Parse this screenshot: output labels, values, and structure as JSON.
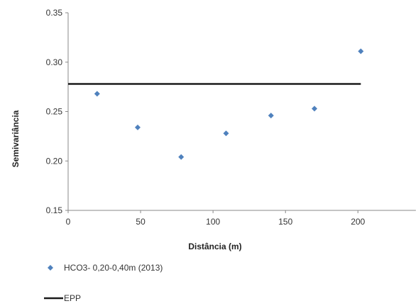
{
  "chart_data": {
    "type": "scatter",
    "xlabel": "Distância (m)",
    "ylabel": "Semivariância",
    "xlim": [
      0,
      240
    ],
    "ylim": [
      0.15,
      0.35
    ],
    "x_ticks": [
      "0",
      "50",
      "100",
      "150",
      "200"
    ],
    "y_ticks": [
      "0.15",
      "0.20",
      "0.25",
      "0.30",
      "0.35"
    ],
    "grid": false,
    "legend_position": "bottom-left",
    "series": [
      {
        "name": "HCO3- 0,20-0,40m (2013)",
        "kind": "points",
        "marker": "diamond",
        "color": "#4f81bd",
        "x": [
          20,
          48,
          78,
          109,
          140,
          170,
          202
        ],
        "y": [
          0.268,
          0.234,
          0.204,
          0.228,
          0.246,
          0.253,
          0.311
        ]
      },
      {
        "name": "EPP",
        "kind": "line",
        "color": "#1a1a1a",
        "x": [
          0,
          202
        ],
        "y": [
          0.278,
          0.278
        ]
      }
    ]
  }
}
